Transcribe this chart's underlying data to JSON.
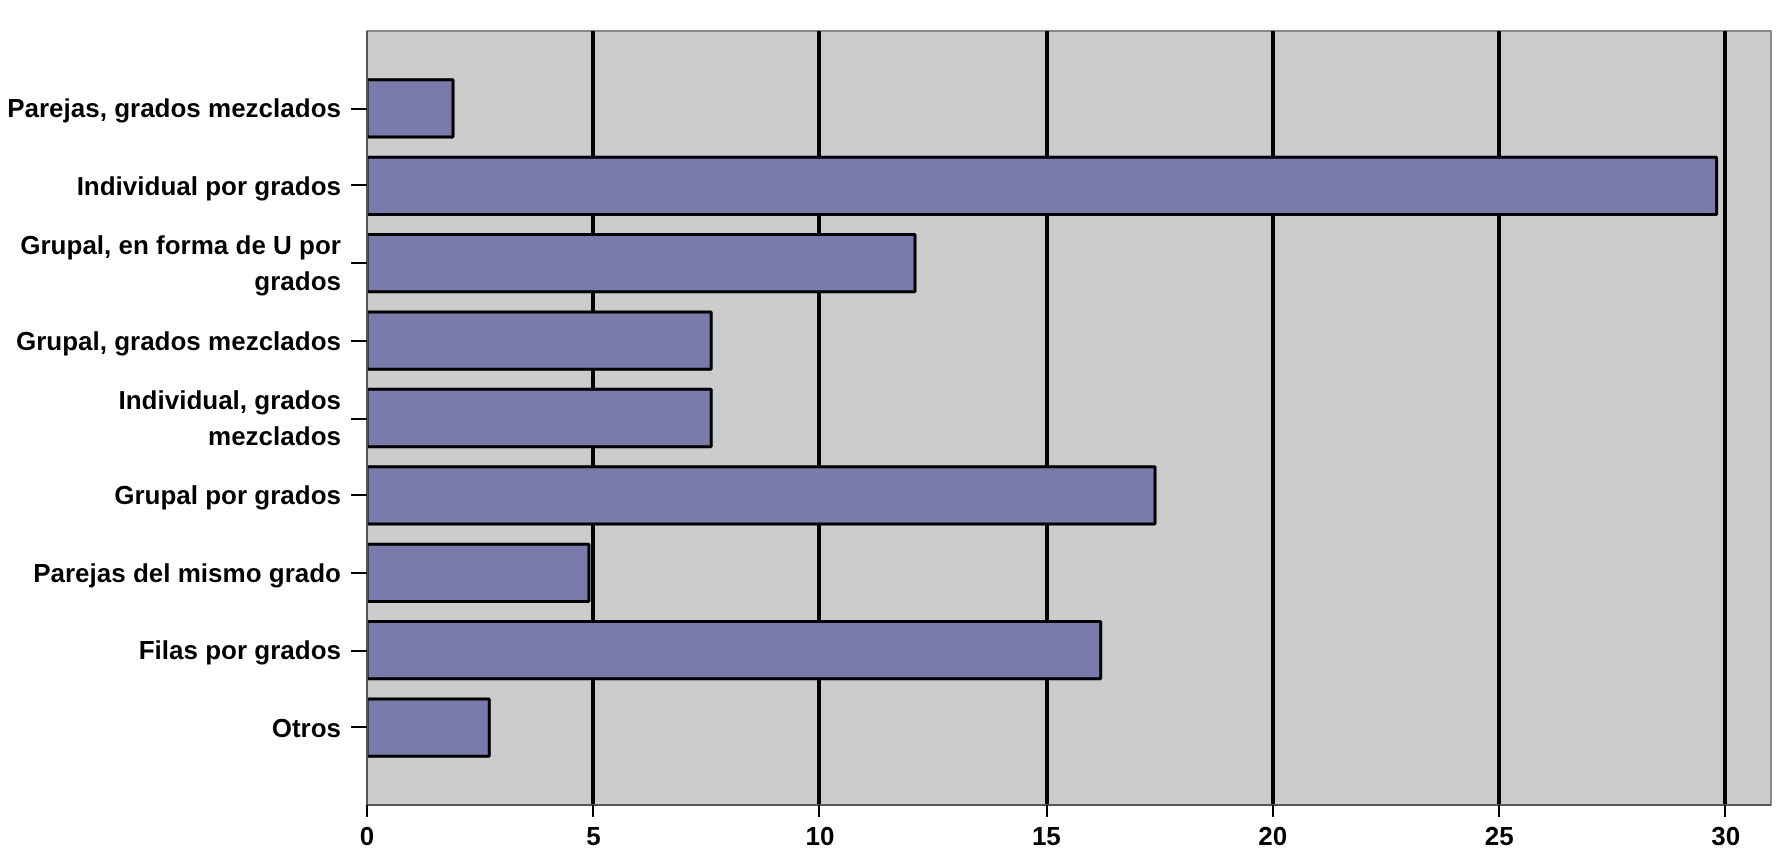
{
  "chart_data": {
    "type": "bar",
    "orientation": "horizontal",
    "categories": [
      "Parejas, grados mezclados",
      "Individual por grados",
      "Grupal, en forma de U por\ngrados",
      "Grupal, grados mezclados",
      "Individual, grados\nmezclados",
      "Grupal por grados",
      "Parejas del mismo grado",
      "Filas por grados",
      "Otros"
    ],
    "values": [
      1.9,
      29.8,
      12.1,
      7.6,
      7.6,
      17.4,
      4.9,
      16.2,
      2.7
    ],
    "color": "#7b7bab",
    "xlim": [
      0,
      31
    ],
    "xticks": [
      0,
      5,
      10,
      15,
      20,
      25,
      30
    ],
    "grid": "x"
  }
}
